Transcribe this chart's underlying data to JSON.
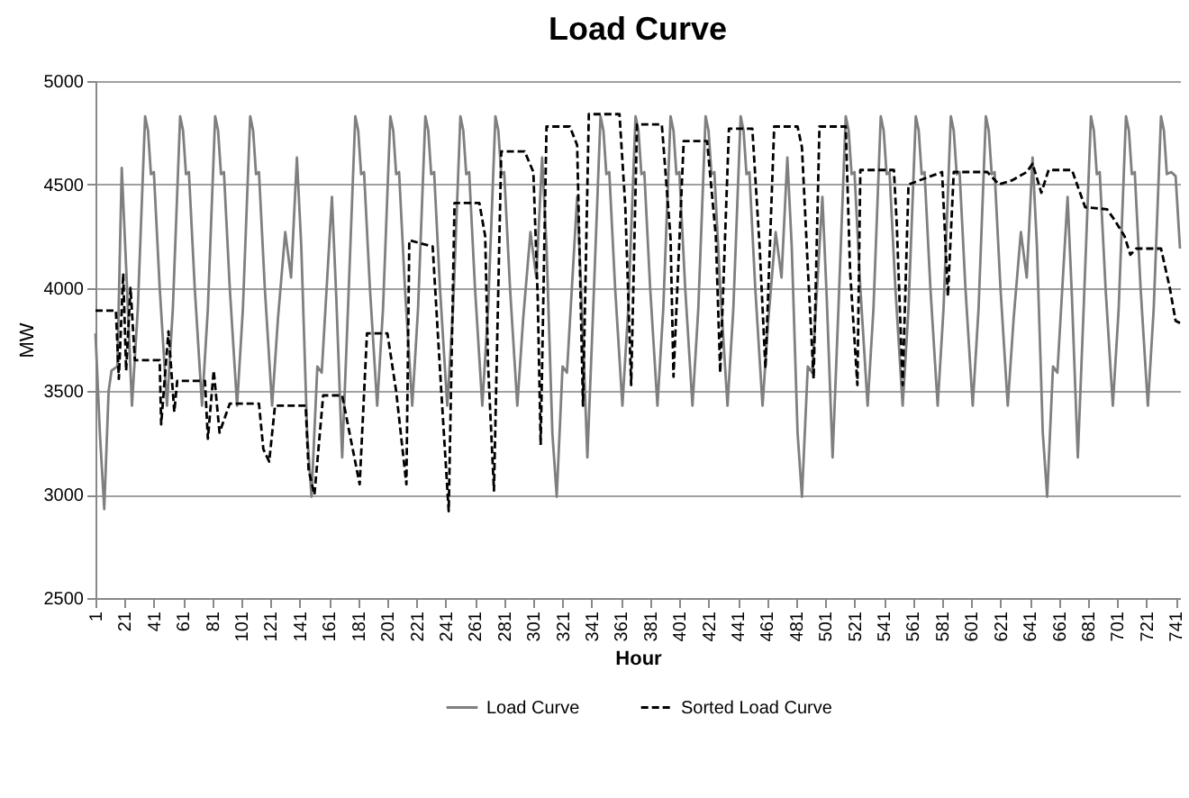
{
  "chart_data": {
    "type": "line",
    "title": "Load Curve",
    "xlabel": "Hour",
    "ylabel": "MW",
    "xlim": [
      1,
      744
    ],
    "xticks": [
      1,
      21,
      41,
      61,
      81,
      101,
      121,
      141,
      161,
      181,
      201,
      221,
      241,
      261,
      281,
      301,
      321,
      341,
      361,
      381,
      401,
      421,
      441,
      461,
      481,
      501,
      521,
      541,
      561,
      581,
      601,
      621,
      641,
      661,
      681,
      701,
      721,
      741
    ],
    "ylim": [
      2500,
      5000
    ],
    "yticks": [
      2500,
      3000,
      3500,
      4000,
      4500,
      5000
    ],
    "grid": "y",
    "legend": "bottom",
    "marker": "none",
    "series": [
      {
        "name": "Load Curve",
        "color": "#7f7f7f",
        "line_style": "solid",
        "x": [
          1,
          4,
          7,
          10,
          12,
          16,
          19,
          22,
          26,
          30,
          35,
          37,
          39,
          41,
          45,
          50,
          54,
          59,
          61,
          63,
          65,
          69,
          74,
          78,
          83,
          85,
          87,
          89,
          93,
          98,
          102,
          107,
          109,
          111,
          113,
          117,
          122,
          126,
          131,
          135,
          139,
          142,
          146,
          149,
          153,
          156,
          163,
          166,
          170,
          174,
          179,
          181,
          183,
          185,
          189,
          194,
          198,
          203,
          205,
          207,
          209,
          213,
          218,
          222,
          227,
          229,
          231,
          233,
          237,
          242,
          246,
          251,
          253,
          255,
          257,
          261,
          266,
          270,
          275,
          277,
          279,
          281,
          285,
          290,
          294,
          299,
          303,
          307,
          310,
          314,
          317,
          321,
          324,
          331,
          334,
          338,
          342,
          347,
          349,
          351,
          353,
          357,
          362,
          366,
          371,
          373,
          375,
          377,
          381,
          386,
          390,
          395,
          397,
          399,
          401,
          405,
          410,
          414,
          419,
          421,
          423,
          425,
          429,
          434,
          438,
          443,
          445,
          447,
          449,
          453,
          458,
          462,
          467,
          471,
          475,
          478,
          482,
          485,
          489,
          492,
          499,
          502,
          506,
          510,
          515,
          517,
          519,
          521,
          525,
          530,
          534,
          539,
          541,
          543,
          545,
          549,
          554,
          558,
          563,
          565,
          567,
          569,
          573,
          578,
          582,
          587,
          589,
          591,
          593,
          597,
          602,
          606,
          611,
          613,
          615,
          617,
          621,
          626,
          630,
          635,
          639,
          643,
          646,
          650,
          653,
          657,
          660,
          667,
          670,
          674,
          678,
          683,
          685,
          687,
          689,
          693,
          698,
          702,
          707,
          709,
          711,
          713,
          717,
          722,
          726,
          731,
          733,
          735,
          738,
          741,
          744
        ],
        "values": [
          3780,
          3300,
          2930,
          3500,
          3600,
          3620,
          4580,
          4100,
          3430,
          3900,
          4830,
          4760,
          4550,
          4560,
          4000,
          3430,
          3900,
          4830,
          4760,
          4550,
          4560,
          4000,
          3430,
          3900,
          4830,
          4760,
          4550,
          4560,
          4000,
          3430,
          3900,
          4830,
          4760,
          4550,
          4560,
          4000,
          3430,
          3850,
          4270,
          4050,
          4630,
          4200,
          3300,
          2990,
          3620,
          3590,
          4440,
          3950,
          3180,
          3900,
          4830,
          4760,
          4550,
          4560,
          4000,
          3430,
          3900,
          4830,
          4760,
          4550,
          4560,
          4000,
          3430,
          3900,
          4830,
          4760,
          4550,
          4560,
          4000,
          3430,
          3900,
          4830,
          4760,
          4550,
          4560,
          4000,
          3430,
          3900,
          4830,
          4760,
          4550,
          4560,
          4000,
          3430,
          3850,
          4270,
          4050,
          4630,
          4200,
          3300,
          2990,
          3620,
          3590,
          4440,
          3950,
          3180,
          3900,
          4830,
          4760,
          4550,
          4560,
          4000,
          3430,
          3900,
          4830,
          4760,
          4550,
          4560,
          4000,
          3430,
          3900,
          4830,
          4760,
          4550,
          4560,
          4000,
          3430,
          3900,
          4830,
          4760,
          4550,
          4560,
          4000,
          3430,
          3900,
          4830,
          4760,
          4550,
          4560,
          4000,
          3430,
          3850,
          4270,
          4050,
          4630,
          4200,
          3300,
          2990,
          3620,
          3590,
          4440,
          3950,
          3180,
          3900,
          4830,
          4760,
          4550,
          4560,
          4000,
          3430,
          3900,
          4830,
          4760,
          4550,
          4560,
          4000,
          3430,
          3900,
          4830,
          4760,
          4550,
          4560,
          4000,
          3430,
          3900,
          4830,
          4760,
          4550,
          4560,
          4000,
          3430,
          3900,
          4830,
          4760,
          4550,
          4560,
          4000,
          3430,
          3850,
          4270,
          4050,
          4630,
          4200,
          3300,
          2990,
          3620,
          3590,
          4440,
          3950,
          3180,
          3900,
          4830,
          4760,
          4550,
          4560,
          4000,
          3430,
          3900,
          4830,
          4760,
          4550,
          4560,
          4000,
          3430,
          3900,
          4830,
          4760,
          4550,
          4560,
          4540,
          4190
        ]
      },
      {
        "name": "Sorted Load Curve",
        "color": "#000000",
        "line_style": "dashed",
        "x": [
          1,
          15,
          17,
          20,
          22,
          25,
          28,
          45,
          46,
          51,
          55,
          57,
          76,
          78,
          82,
          86,
          93,
          113,
          116,
          120,
          124,
          145,
          147,
          151,
          157,
          170,
          175,
          182,
          187,
          201,
          207,
          214,
          216,
          232,
          238,
          243,
          247,
          264,
          268,
          270,
          274,
          279,
          295,
          301,
          304,
          306,
          310,
          326,
          331,
          335,
          339,
          360,
          364,
          368,
          372,
          389,
          395,
          397,
          404,
          420,
          426,
          429,
          435,
          451,
          456,
          460,
          466,
          482,
          485,
          489,
          493,
          497,
          515,
          518,
          523,
          525,
          548,
          550,
          554,
          558,
          581,
          585,
          589,
          612,
          620,
          629,
          639,
          643,
          649,
          654,
          670,
          679,
          694,
          699,
          706,
          710,
          714,
          731,
          737,
          741,
          744
        ],
        "values": [
          3890,
          3890,
          3560,
          4070,
          3600,
          4000,
          3650,
          3650,
          3340,
          3790,
          3400,
          3550,
          3550,
          3270,
          3600,
          3300,
          3440,
          3440,
          3220,
          3160,
          3430,
          3430,
          3120,
          3000,
          3480,
          3480,
          3300,
          3050,
          3780,
          3780,
          3500,
          3050,
          4230,
          4200,
          3490,
          2920,
          4410,
          4410,
          4250,
          3620,
          3020,
          4660,
          4660,
          4560,
          3950,
          3240,
          4780,
          4780,
          4690,
          3430,
          4840,
          4840,
          4390,
          3530,
          4790,
          4790,
          4240,
          3570,
          4710,
          4710,
          4250,
          3590,
          4770,
          4770,
          4200,
          3610,
          4780,
          4780,
          4680,
          4100,
          3560,
          4780,
          4780,
          4080,
          3530,
          4570,
          4570,
          4300,
          3530,
          4500,
          4560,
          3960,
          4560,
          4560,
          4500,
          4520,
          4560,
          4600,
          4460,
          4570,
          4570,
          4390,
          4380,
          4330,
          4250,
          4160,
          4190,
          4190,
          4000,
          3840,
          3830
        ]
      }
    ]
  }
}
